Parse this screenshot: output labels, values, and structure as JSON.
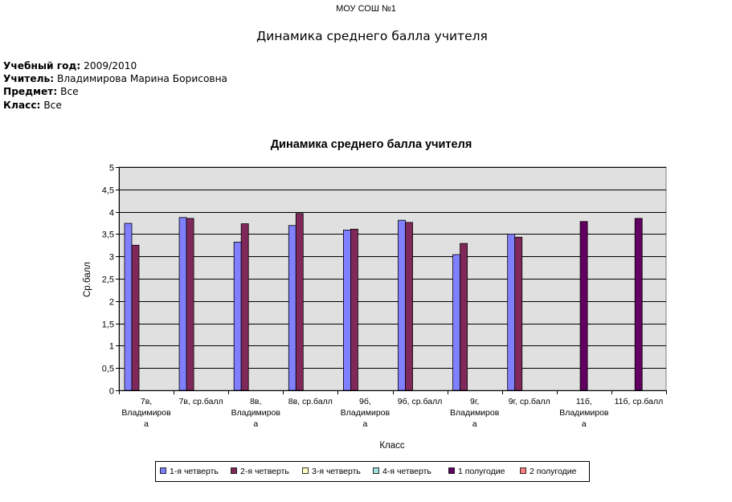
{
  "header": {
    "school": "МОУ СОШ №1",
    "title": "Динамика среднего балла учителя"
  },
  "info": {
    "year_label": "Учебный год:",
    "year_value": "2009/2010",
    "teacher_label": "Учитель:",
    "teacher_value": "Владимирова Марина Борисовна",
    "subject_label": "Предмет:",
    "subject_value": "Все",
    "class_label": "Класс:",
    "class_value": "Все"
  },
  "colors": {
    "plot_background": "#e0e0e0",
    "gridline": "#000000"
  },
  "chart_data": {
    "type": "bar",
    "title": "Динамика среднего балла учителя",
    "xlabel": "Класс",
    "ylabel": "Ср.балл",
    "ylim": [
      0,
      5
    ],
    "ytick_step": 0.5,
    "yticks": [
      "0",
      "0,5",
      "1",
      "1,5",
      "2",
      "2,5",
      "3",
      "3,5",
      "4",
      "4,5",
      "5"
    ],
    "grid": true,
    "legend_position": "bottom",
    "categories": [
      [
        "7в,",
        "Владимиров",
        "а"
      ],
      [
        "7в, ср.балл"
      ],
      [
        "8в,",
        "Владимиров",
        "а"
      ],
      [
        "8в, ср.балл"
      ],
      [
        "9б,",
        "Владимиров",
        "а"
      ],
      [
        "9б, ср.балл"
      ],
      [
        "9г,",
        "Владимиров",
        "а"
      ],
      [
        "9г, ср.балл"
      ],
      [
        "11б,",
        "Владимиров",
        "а"
      ],
      [
        "11б, ср.балл"
      ]
    ],
    "series": [
      {
        "name": "1-я четверть",
        "color": "#8080ff",
        "values": [
          3.74,
          3.87,
          3.32,
          3.69,
          3.59,
          3.81,
          3.04,
          3.5,
          null,
          null
        ]
      },
      {
        "name": "2-я четверть",
        "color": "#80285a",
        "values": [
          3.25,
          3.85,
          3.73,
          3.96,
          3.61,
          3.76,
          3.29,
          3.43,
          null,
          null
        ]
      },
      {
        "name": "3-я четверть",
        "color": "#ffffc0",
        "values": [
          null,
          null,
          null,
          null,
          null,
          null,
          null,
          null,
          null,
          null
        ]
      },
      {
        "name": "4-я четверть",
        "color": "#a0e0e0",
        "values": [
          null,
          null,
          null,
          null,
          null,
          null,
          null,
          null,
          null,
          null
        ]
      },
      {
        "name": "1 полугодие",
        "color": "#600060",
        "values": [
          null,
          null,
          null,
          null,
          null,
          null,
          null,
          null,
          3.78,
          3.85
        ]
      },
      {
        "name": "2 полугодие",
        "color": "#ff8080",
        "values": [
          null,
          null,
          null,
          null,
          null,
          null,
          null,
          null,
          null,
          null
        ]
      }
    ]
  }
}
